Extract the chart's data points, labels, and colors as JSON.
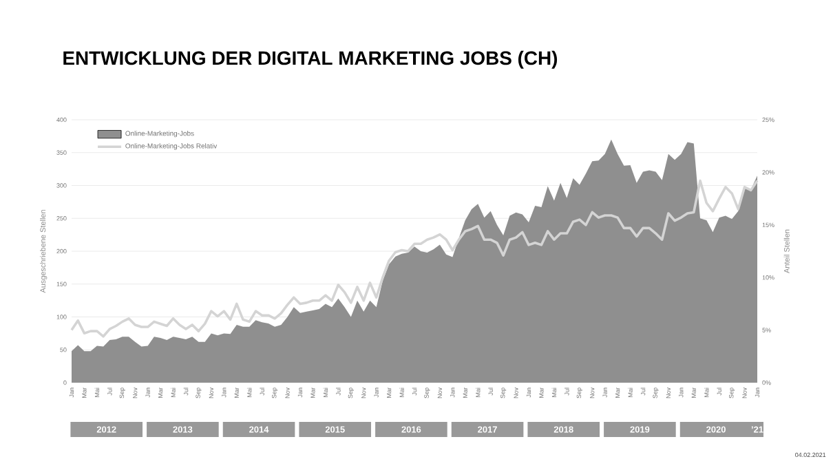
{
  "chart_data": {
    "type": "area",
    "title": "ENTWICKLUNG DER DIGITAL MARKETING JOBS (CH)",
    "ylabel": "Ausgeschriebene Stellen",
    "y2label": "Anteil Stellen",
    "categories": [
      "Jan",
      null,
      "Mar",
      null,
      "Mai",
      null,
      "Jul",
      null,
      "Sep",
      null,
      "Nov",
      null,
      "Jan",
      null,
      "Mar",
      null,
      "Mai",
      null,
      "Jul",
      null,
      "Sep",
      null,
      "Nov",
      null,
      "Jan",
      null,
      "Mar",
      null,
      "Mai",
      null,
      "Jul",
      null,
      "Sep",
      null,
      "Nov",
      null,
      "Jan",
      null,
      "Mar",
      null,
      "Mai",
      null,
      "Jul",
      null,
      "Sep",
      null,
      "Nov",
      null,
      "Jan",
      null,
      "Mar",
      null,
      "Mai",
      null,
      "Jul",
      null,
      "Sep",
      null,
      "Nov",
      null,
      "Jan",
      null,
      "Mar",
      null,
      "Mai",
      null,
      "Jul",
      null,
      "Sep",
      null,
      "Nov",
      null,
      "Jan",
      null,
      "Mar",
      null,
      "Mai",
      null,
      "Jul",
      null,
      "Sep",
      null,
      "Nov",
      null,
      "Jan",
      null,
      "Mar",
      null,
      "Mai",
      null,
      "Jul",
      null,
      "Sep",
      null,
      "Nov",
      null,
      "Jan",
      null,
      "Mar",
      null,
      "Mai",
      null,
      "Jul",
      null,
      "Sep",
      null,
      "Nov",
      null,
      "Jan"
    ],
    "series": [
      {
        "name": "Online-Marketing-Jobs",
        "color": "#8f8f8f",
        "values": [
          48,
          57,
          48,
          48,
          56,
          55,
          65,
          66,
          70,
          70,
          62,
          55,
          56,
          70,
          68,
          65,
          70,
          68,
          66,
          70,
          62,
          62,
          75,
          72,
          75,
          74,
          88,
          85,
          85,
          95,
          92,
          90,
          85,
          88,
          100,
          115,
          106,
          108,
          110,
          112,
          120,
          115,
          128,
          115,
          100,
          125,
          108,
          125,
          115,
          155,
          180,
          192,
          196,
          198,
          207,
          200,
          198,
          203,
          210,
          195,
          191,
          220,
          247,
          264,
          272,
          251,
          261,
          240,
          224,
          254,
          259,
          256,
          244,
          269,
          267,
          299,
          277,
          304,
          281,
          311,
          301,
          318,
          337,
          338,
          348,
          370,
          348,
          330,
          331,
          304,
          321,
          323,
          321,
          308,
          348,
          339,
          348,
          366,
          364,
          250,
          247,
          229,
          251,
          254,
          249,
          261,
          298,
          294,
          315
        ]
      },
      {
        "name": "Online-Marketing-Jobs Relativ",
        "type": "line",
        "axis": "y2",
        "color": "#d4d4d4",
        "values": [
          5.0,
          5.9,
          4.7,
          4.9,
          4.9,
          4.4,
          5.1,
          5.4,
          5.8,
          6.1,
          5.5,
          5.3,
          5.3,
          5.8,
          5.6,
          5.4,
          6.1,
          5.5,
          5.1,
          5.5,
          4.9,
          5.6,
          6.8,
          6.3,
          6.8,
          6.0,
          7.5,
          6.0,
          5.8,
          6.8,
          6.4,
          6.4,
          6.1,
          6.6,
          7.4,
          8.1,
          7.5,
          7.6,
          7.8,
          7.8,
          8.3,
          7.8,
          9.3,
          8.6,
          7.6,
          9.1,
          7.8,
          9.5,
          8.1,
          10.0,
          11.6,
          12.4,
          12.6,
          12.5,
          13.2,
          13.2,
          13.6,
          13.8,
          14.1,
          13.6,
          12.6,
          13.6,
          14.4,
          14.6,
          14.9,
          13.6,
          13.6,
          13.3,
          12.1,
          13.6,
          13.8,
          14.3,
          13.1,
          13.3,
          13.1,
          14.4,
          13.6,
          14.2,
          14.2,
          15.3,
          15.5,
          15.0,
          16.2,
          15.7,
          15.9,
          15.9,
          15.7,
          14.7,
          14.7,
          13.9,
          14.7,
          14.7,
          14.2,
          13.6,
          16.1,
          15.4,
          15.7,
          16.1,
          16.2,
          19.2,
          17.1,
          16.3,
          17.5,
          18.6,
          18.0,
          16.5,
          18.6,
          18.3,
          19.2
        ]
      }
    ],
    "ylim": [
      0,
      400
    ],
    "yticks": [
      0,
      50,
      100,
      150,
      200,
      250,
      300,
      350,
      400
    ],
    "y2lim": [
      0,
      25
    ],
    "y2ticks": [
      {
        "value": 0,
        "label": "0%"
      },
      {
        "value": 5,
        "label": "5%"
      },
      {
        "value": 10,
        "label": "10%"
      },
      {
        "value": 15,
        "label": "15%"
      },
      {
        "value": 20,
        "label": "20%"
      },
      {
        "value": 25,
        "label": "25%"
      }
    ],
    "grid": "y",
    "legend": "top left",
    "annotations": [
      "2012",
      "2013",
      "2014",
      "2015",
      "2016",
      "2017",
      "2018",
      "2019",
      "2020",
      "’21",
      "04.02.2021"
    ]
  }
}
